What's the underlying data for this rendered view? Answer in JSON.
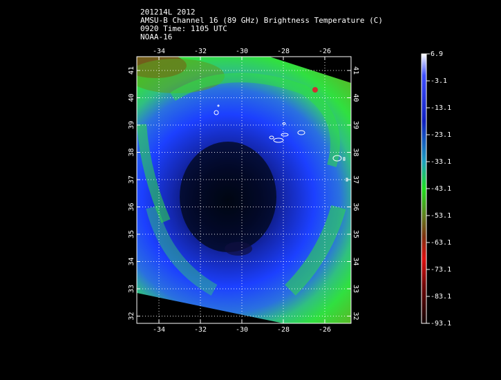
{
  "header": {
    "line1": "201214L 2012",
    "line2": "AMSU-B Channel 16 (89 GHz) Brightness Temperature (C)",
    "line3": "0920 Time: 1105 UTC",
    "line4": "NOAA-16"
  },
  "map": {
    "lon_labels": [
      "-34",
      "-32",
      "-30",
      "-28",
      "-26"
    ],
    "lat_labels": [
      "41",
      "40",
      "39",
      "38",
      "37",
      "36",
      "35",
      "34",
      "33",
      "32"
    ]
  },
  "colorbar": {
    "labels": [
      "6.9",
      "-3.1",
      "-13.1",
      "-23.1",
      "-33.1",
      "-43.1",
      "-53.1",
      "-63.1",
      "-73.1",
      "-83.1",
      "-93.1"
    ]
  },
  "colors": {
    "cold": "#000010",
    "deep_blue": "#0a1a8a",
    "blue": "#1a3cff",
    "cyan": "#20c0d0",
    "green": "#30e030",
    "brown": "#8a3a10",
    "red": "#d01010"
  }
}
